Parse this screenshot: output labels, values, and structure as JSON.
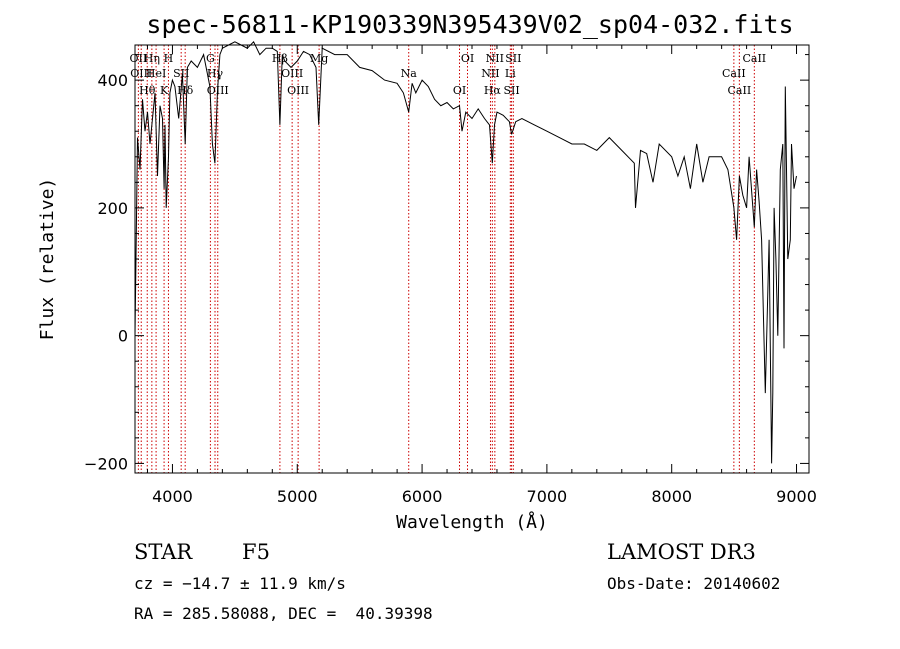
{
  "chart_data": {
    "type": "line",
    "title": "spec-56811-KP190339N395439V02_sp04-032.fits",
    "xlabel": "Wavelength (Å)",
    "ylabel": "Flux (relative)",
    "xlim": [
      3700,
      9100
    ],
    "ylim": [
      -215,
      455
    ],
    "xticks": [
      4000,
      5000,
      6000,
      7000,
      8000,
      9000
    ],
    "yticks": [
      -200,
      0,
      200,
      400
    ],
    "grid": false,
    "series": [
      {
        "name": "spectrum",
        "x": [
          3700,
          3720,
          3740,
          3760,
          3780,
          3800,
          3820,
          3840,
          3860,
          3880,
          3900,
          3920,
          3933,
          3940,
          3950,
          3968,
          3980,
          4000,
          4020,
          4050,
          4080,
          4102,
          4120,
          4150,
          4200,
          4250,
          4300,
          4320,
          4340,
          4360,
          4380,
          4400,
          4450,
          4500,
          4550,
          4600,
          4650,
          4700,
          4750,
          4800,
          4840,
          4861,
          4880,
          4900,
          4950,
          5000,
          5050,
          5100,
          5150,
          5172,
          5200,
          5300,
          5400,
          5500,
          5600,
          5700,
          5800,
          5850,
          5893,
          5920,
          5950,
          6000,
          6050,
          6100,
          6150,
          6200,
          6250,
          6300,
          6320,
          6350,
          6400,
          6450,
          6500,
          6540,
          6563,
          6580,
          6600,
          6650,
          6700,
          6717,
          6750,
          6800,
          6900,
          7000,
          7100,
          7200,
          7300,
          7400,
          7500,
          7600,
          7700,
          7710,
          7750,
          7800,
          7850,
          7900,
          8000,
          8050,
          8100,
          8150,
          8200,
          8250,
          8300,
          8400,
          8450,
          8498,
          8520,
          8542,
          8570,
          8600,
          8620,
          8662,
          8680,
          8700,
          8720,
          8750,
          8780,
          8800,
          8810,
          8820,
          8835,
          8850,
          8870,
          8890,
          8900,
          8910,
          8930,
          8950,
          8960,
          8980,
          9000
        ],
        "y": [
          0,
          310,
          260,
          370,
          320,
          350,
          300,
          340,
          380,
          250,
          360,
          340,
          230,
          330,
          200,
          280,
          380,
          400,
          390,
          340,
          410,
          300,
          420,
          430,
          420,
          440,
          390,
          300,
          270,
          380,
          440,
          450,
          455,
          460,
          455,
          450,
          460,
          440,
          450,
          450,
          445,
          330,
          440,
          430,
          420,
          430,
          445,
          440,
          420,
          330,
          450,
          440,
          440,
          420,
          415,
          400,
          395,
          380,
          350,
          395,
          380,
          400,
          390,
          370,
          360,
          365,
          355,
          360,
          320,
          350,
          340,
          355,
          340,
          330,
          270,
          330,
          350,
          345,
          335,
          315,
          335,
          340,
          330,
          320,
          310,
          300,
          300,
          290,
          310,
          290,
          270,
          200,
          290,
          285,
          240,
          300,
          280,
          250,
          280,
          230,
          300,
          240,
          280,
          280,
          260,
          200,
          150,
          250,
          220,
          200,
          280,
          170,
          260,
          210,
          150,
          -90,
          150,
          -200,
          -90,
          200,
          120,
          0,
          260,
          300,
          -20,
          390,
          120,
          150,
          300,
          230,
          250
        ]
      }
    ],
    "lines": [
      {
        "x": 3727,
        "label": "OII"
      },
      {
        "x": 3750,
        "label": "OIII"
      },
      {
        "x": 3798,
        "label": "Hθ"
      },
      {
        "x": 3835,
        "label": "Hη"
      },
      {
        "x": 3869,
        "label": "HeI"
      },
      {
        "x": 3933,
        "label": "K"
      },
      {
        "x": 3968,
        "label": "H"
      },
      {
        "x": 4070,
        "label": "SII"
      },
      {
        "x": 4102,
        "label": "Hδ"
      },
      {
        "x": 4304,
        "label": "G"
      },
      {
        "x": 4341,
        "label": "Hγ"
      },
      {
        "x": 4363,
        "label": "OIII"
      },
      {
        "x": 4861,
        "label": "Hβ"
      },
      {
        "x": 4959,
        "label": "OIII"
      },
      {
        "x": 5007,
        "label": "OIII"
      },
      {
        "x": 5175,
        "label": "Mg"
      },
      {
        "x": 5893,
        "label": "Na"
      },
      {
        "x": 6300,
        "label": "OI"
      },
      {
        "x": 6364,
        "label": "OI"
      },
      {
        "x": 6548,
        "label": "NII"
      },
      {
        "x": 6563,
        "label": "Hα"
      },
      {
        "x": 6583,
        "label": "NII"
      },
      {
        "x": 6707,
        "label": "Li"
      },
      {
        "x": 6717,
        "label": "SII"
      },
      {
        "x": 6731,
        "label": "SII"
      },
      {
        "x": 8498,
        "label": "CaII"
      },
      {
        "x": 8542,
        "label": "CaII"
      },
      {
        "x": 8662,
        "label": "CaII"
      }
    ]
  },
  "info": {
    "object_class": "STAR",
    "subclass": "F5",
    "survey": "LAMOST DR3",
    "cz": "cz = −14.7 ± 11.9 km/s",
    "obs_date": "Obs-Date: 20140602",
    "coords": "RA = 285.58088, DEC =  40.39398"
  }
}
